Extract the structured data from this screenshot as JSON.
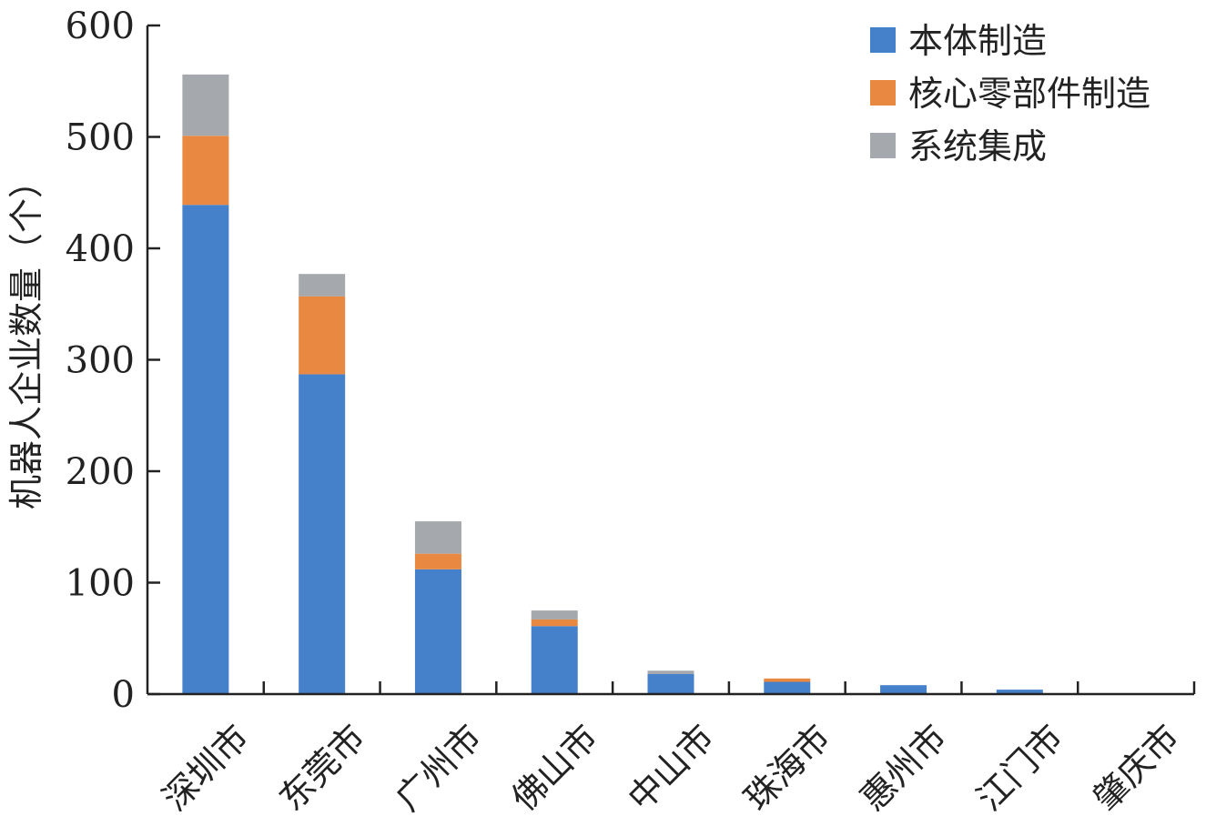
{
  "chart_data": {
    "type": "bar",
    "stacked": true,
    "ylabel": "机器人企业数量（个）",
    "ylim": [
      0,
      600
    ],
    "yticks": [
      0,
      100,
      200,
      300,
      400,
      500,
      600
    ],
    "categories": [
      "深圳市",
      "东莞市",
      "广州市",
      "佛山市",
      "中山市",
      "珠海市",
      "惠州市",
      "江门市",
      "肇庆市"
    ],
    "series": [
      {
        "name": "本体制造",
        "color": "#4481CA",
        "values": [
          439,
          287,
          112,
          61,
          18,
          11,
          8,
          4,
          0
        ]
      },
      {
        "name": "核心零部件制造",
        "color": "#E98840",
        "values": [
          62,
          70,
          14,
          6,
          0,
          3,
          0,
          0,
          0
        ]
      },
      {
        "name": "系统集成",
        "color": "#A5A8AD",
        "values": [
          55,
          20,
          29,
          8,
          3,
          0,
          0,
          0,
          0
        ]
      }
    ],
    "legend_position": "top-right",
    "grid": false
  }
}
